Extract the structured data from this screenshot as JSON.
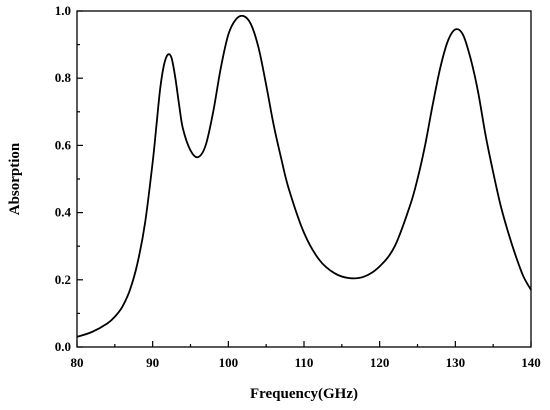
{
  "chart_data": {
    "type": "line",
    "title": "",
    "xlabel": "Frequency(GHz)",
    "ylabel": "Absorption",
    "xlim": [
      80,
      140
    ],
    "ylim": [
      0.0,
      1.0
    ],
    "grid": false,
    "legend": "none",
    "line_color": "#000000",
    "x_ticks": [
      80,
      90,
      100,
      110,
      120,
      130,
      140
    ],
    "x_tick_labels": [
      "80",
      "90",
      "100",
      "110",
      "120",
      "130",
      "140"
    ],
    "y_ticks": [
      0.0,
      0.2,
      0.4,
      0.6,
      0.8,
      1.0
    ],
    "y_tick_labels": [
      "0.0",
      "0.2",
      "0.4",
      "0.6",
      "0.8",
      "1.0"
    ],
    "series": [
      {
        "x": [
          80,
          82,
          84,
          85,
          86,
          87,
          88,
          89,
          90,
          90.5,
          91,
          91.5,
          92,
          92.5,
          93,
          93.5,
          94,
          95,
          96,
          97,
          98,
          99,
          100,
          101,
          102,
          103,
          104,
          105,
          106,
          107,
          108,
          110,
          112,
          114,
          116,
          118,
          120,
          122,
          124,
          125,
          126,
          127,
          128,
          129,
          130,
          131,
          132,
          133,
          134,
          135,
          136,
          137,
          138,
          139,
          140
        ],
        "y": [
          0.03,
          0.045,
          0.07,
          0.09,
          0.12,
          0.17,
          0.25,
          0.37,
          0.55,
          0.66,
          0.77,
          0.84,
          0.87,
          0.86,
          0.8,
          0.72,
          0.65,
          0.585,
          0.565,
          0.6,
          0.7,
          0.83,
          0.93,
          0.975,
          0.985,
          0.96,
          0.89,
          0.78,
          0.66,
          0.56,
          0.47,
          0.34,
          0.26,
          0.22,
          0.205,
          0.21,
          0.24,
          0.3,
          0.42,
          0.5,
          0.6,
          0.72,
          0.83,
          0.91,
          0.945,
          0.93,
          0.86,
          0.76,
          0.63,
          0.52,
          0.42,
          0.34,
          0.27,
          0.21,
          0.17
        ]
      }
    ]
  }
}
